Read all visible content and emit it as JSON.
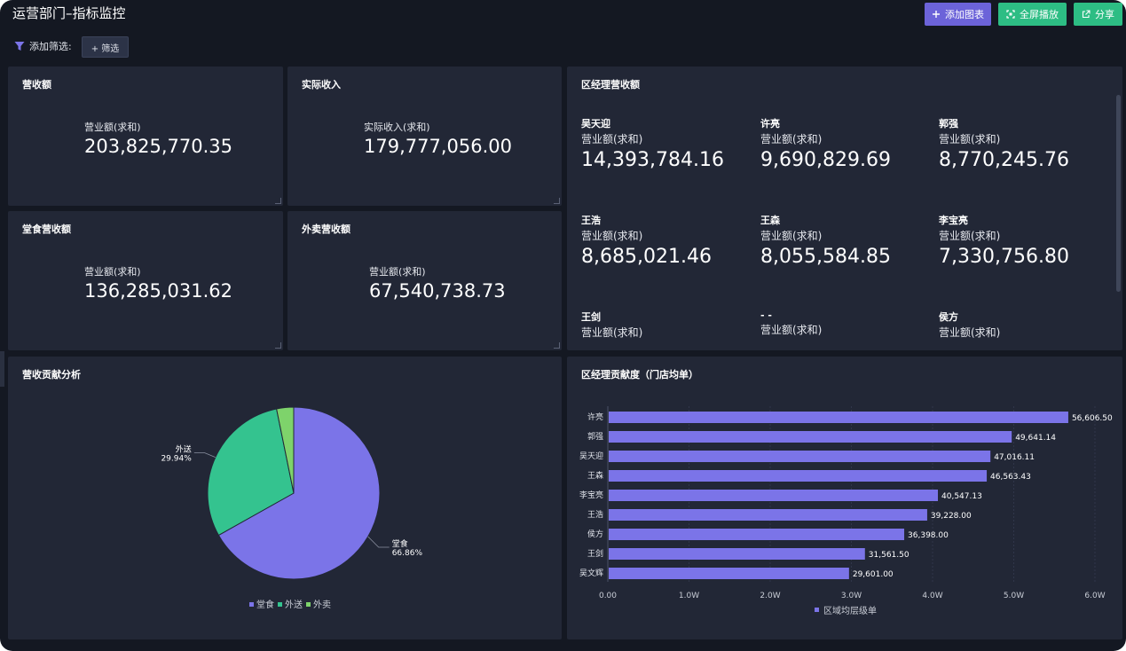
{
  "header": {
    "title": "运营部门–指标监控",
    "add_chart": "添加图表",
    "fullscreen": "全屏播放",
    "share": "分享"
  },
  "filter": {
    "label": "添加筛选:",
    "button": "+ 筛选"
  },
  "kpis": [
    {
      "title": "营收额",
      "label": "营业额(求和)",
      "value": "203,825,770.35"
    },
    {
      "title": "实际收入",
      "label": "实际收入(求和)",
      "value": "179,777,056.00"
    },
    {
      "title": "堂食营收额",
      "label": "营业额(求和)",
      "value": "136,285,031.62"
    },
    {
      "title": "外卖营收额",
      "label": "营业额(求和)",
      "value": "67,540,738.73"
    }
  ],
  "managers": {
    "title": "区经理营收额",
    "items": [
      {
        "name": "吴天迎",
        "label": "营业额(求和)",
        "value": "14,393,784.16"
      },
      {
        "name": "许亮",
        "label": "营业额(求和)",
        "value": "9,690,829.69"
      },
      {
        "name": "郭强",
        "label": "营业额(求和)",
        "value": "8,770,245.76"
      },
      {
        "name": "王浩",
        "label": "营业额(求和)",
        "value": "8,685,021.46"
      },
      {
        "name": "王森",
        "label": "营业额(求和)",
        "value": "8,055,584.85"
      },
      {
        "name": "李宝亮",
        "label": "营业额(求和)",
        "value": "7,330,756.80"
      },
      {
        "name": "王剑",
        "label": "营业额(求和)",
        "value": ""
      },
      {
        "name": "- -",
        "label": "营业额(求和)",
        "value": ""
      },
      {
        "name": "侯方",
        "label": "营业额(求和)",
        "value": ""
      }
    ]
  },
  "colors": {
    "purple": "#7b74e8",
    "green": "#34c38f",
    "light_green": "#7ed36b"
  },
  "chart_data": [
    {
      "type": "pie",
      "title": "营收贡献分析",
      "slices": [
        {
          "name": "堂食",
          "value": 66.86,
          "label": "66.86%",
          "color": "#7b74e8"
        },
        {
          "name": "外送",
          "value": 29.94,
          "label": "29.94%",
          "color": "#34c38f"
        },
        {
          "name": "外卖",
          "value": 3.2,
          "color": "#7ed36b"
        }
      ],
      "legend": [
        "堂食",
        "外送",
        "外卖"
      ]
    },
    {
      "type": "bar",
      "orientation": "horizontal",
      "title": "区经理贡献度（门店均单）",
      "categories": [
        "许亮",
        "郭强",
        "吴天迎",
        "王森",
        "李宝亮",
        "王浩",
        "侯方",
        "王剑",
        "吴文辉"
      ],
      "series": [
        {
          "name": "区域均层级单",
          "values": [
            56606.5,
            49641.14,
            47016.11,
            46563.43,
            40547.13,
            39228.0,
            36398.0,
            31561.5,
            29601.0
          ],
          "labels": [
            "56,606.50",
            "49,641.14",
            "47,016.11",
            "46,563.43",
            "40,547.13",
            "39,228.00",
            "36,398.00",
            "31,561.50",
            "29,601.00"
          ]
        }
      ],
      "xlim": [
        0,
        60000
      ],
      "x_ticks": [
        "0.00",
        "1.0W",
        "2.0W",
        "3.0W",
        "4.0W",
        "5.0W",
        "6.0W"
      ],
      "legend": "bottom"
    }
  ]
}
